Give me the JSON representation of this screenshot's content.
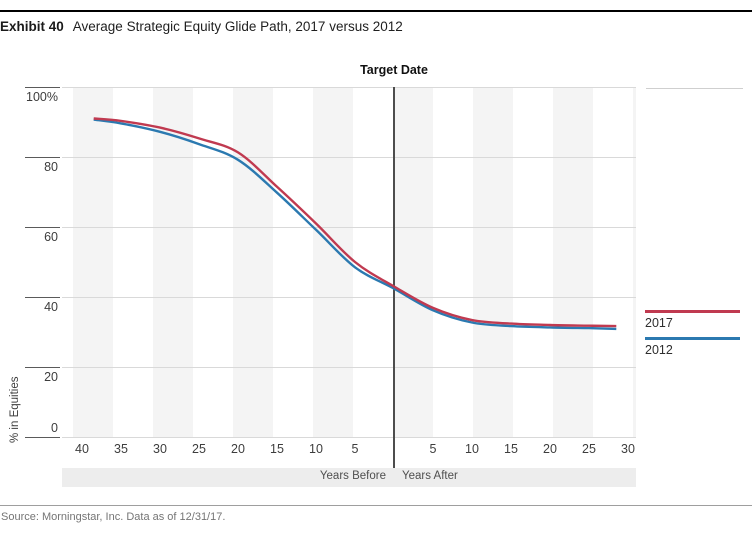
{
  "header": {
    "exhibit_label": "Exhibit 40",
    "title": "Average Strategic Equity Glide Path, 2017 versus 2012"
  },
  "chart": {
    "top_label": "Target Date",
    "y_axis_title": "% in Equities",
    "x_axis_left_label": "Years Before",
    "x_axis_right_label": "Years After",
    "y_tick_labels": [
      "100%",
      "80",
      "60",
      "40",
      "20",
      "0"
    ],
    "y_tick_values": [
      100,
      80,
      60,
      40,
      20,
      0
    ],
    "x_ticks_before": [
      40,
      35,
      30,
      25,
      20,
      15,
      10,
      5
    ],
    "x_ticks_after": [
      5,
      10,
      15,
      20,
      25,
      30
    ]
  },
  "legend": {
    "items": [
      {
        "label": "2017",
        "color": "#c03a50"
      },
      {
        "label": "2012",
        "color": "#2b79b0"
      }
    ]
  },
  "footer": {
    "source": "Source: Morningstar, Inc. Data as of 12/31/17."
  },
  "chart_data": {
    "type": "line",
    "title": "Average Strategic Equity Glide Path, 2017 versus 2012",
    "xlabel": "Years Before / Years After Target Date",
    "ylabel": "% in Equities",
    "x_years_to_target": [
      -38.5,
      -35,
      -30,
      -25,
      -20,
      -15,
      -10,
      -5,
      0,
      5,
      10,
      15,
      20,
      25,
      28.5
    ],
    "series": [
      {
        "name": "2017",
        "color": "#c03a50",
        "values": [
          91.0,
          90.3,
          88.4,
          85.3,
          81.3,
          71.5,
          61.0,
          50.0,
          43.0,
          36.9,
          33.4,
          32.4,
          32.0,
          31.8,
          31.7
        ]
      },
      {
        "name": "2012",
        "color": "#2b79b0",
        "values": [
          90.7,
          89.6,
          87.2,
          83.7,
          79.2,
          69.8,
          59.2,
          48.5,
          42.4,
          36.2,
          32.7,
          31.7,
          31.3,
          31.1,
          30.9
        ]
      }
    ],
    "ylim": [
      0,
      100
    ],
    "xlim": [
      -40,
      30
    ],
    "grid": "horizontal",
    "background_stripes": "vertical alternating light gray, 5-year width",
    "legend_position": "right",
    "annotations": [
      "Target Date vertical line at x=0"
    ]
  }
}
